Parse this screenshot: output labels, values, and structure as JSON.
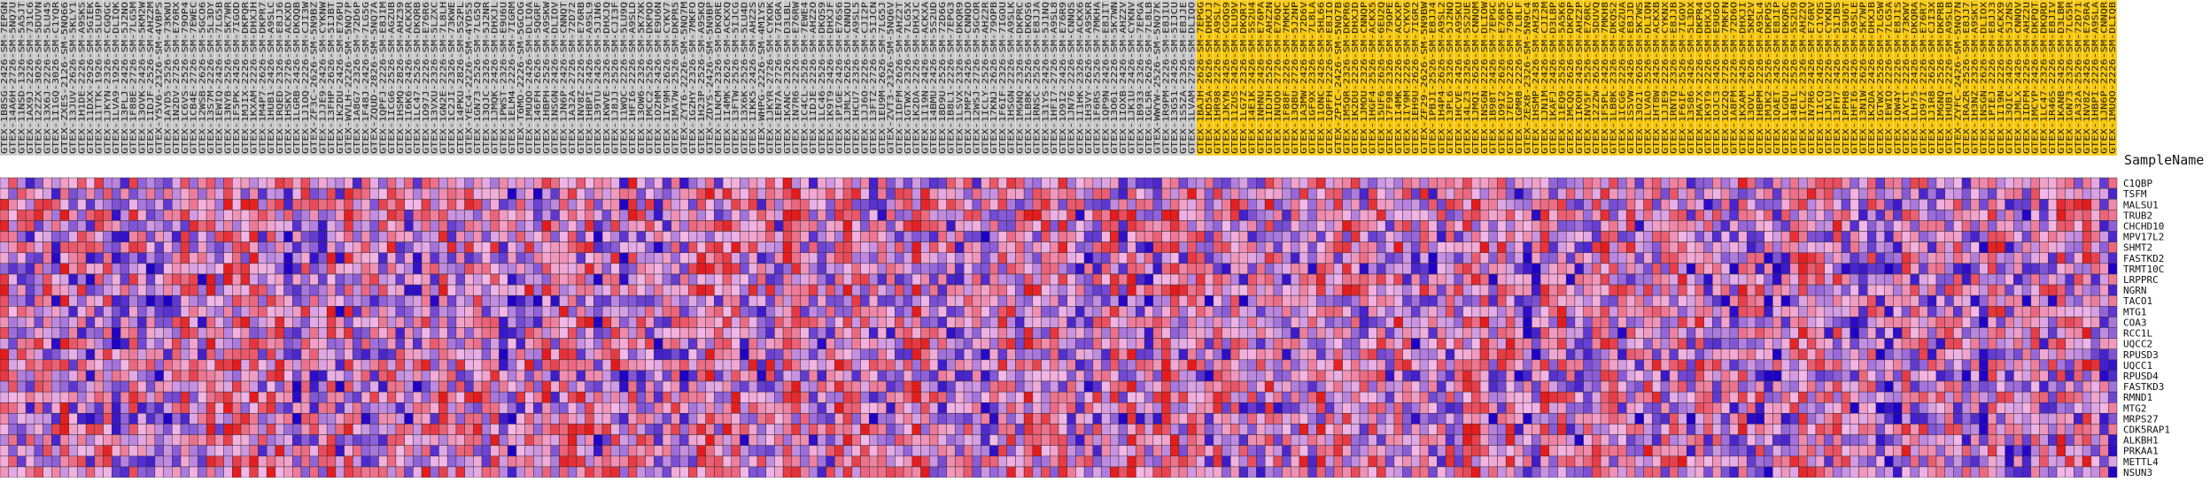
{
  "chart_data": {
    "type": "heatmap",
    "title": "",
    "row_axis_title": "SampleName",
    "colors": {
      "low": "#1f00c8",
      "mid": "#f4b8e8",
      "high": "#e51b1b",
      "group_control_bg": "#c8c8c8",
      "group_case_bg": "#f7c60a",
      "grid": "#333333"
    },
    "genes": [
      "C1QBP",
      "TSFM",
      "MALSU1",
      "TRUB2",
      "CHCHD10",
      "MPV17L2",
      "SHMT2",
      "FASTKD2",
      "TRMT10C",
      "LRPPRC",
      "NGRN",
      "TACO1",
      "MTG1",
      "COA3",
      "RCC1L",
      "UQCC2",
      "RPUSD3",
      "UQCC1",
      "RPUSD4",
      "FASTKD3",
      "RMND1",
      "MTG2",
      "MRPS27",
      "CDK5RAP1",
      "ALKBH1",
      "PRKAA1",
      "METTL4",
      "NSUN3"
    ],
    "samples_control": [
      "GTEX-1B8SG-2426-SM-7EPGN",
      "GTEX-14A6H-2726-SM-5NQ7U",
      "GTEX-11NSD-1326-SM-5A5JT",
      "GTEX-1AX9J-2226-SM-731C6",
      "GTEX-12ZZX-3026-SM-5DUVN",
      "GTEX-13X6J-2226-SM-5LU45",
      "GTEX-1I1GQ-3026-SM-C1YQR",
      "GTEX-ZXES-2126-SM-5NQ66",
      "GTEX-13JUV-2626-SM-5KLY1",
      "GTEX-1H1DE-2226-SM-A9SKS",
      "GTEX-11DXX-2926-SM-5GIEK",
      "GTEX-11TTK-1926-SM-5LU9P",
      "GTEX-1JKYN-2326-SM-CGQGC",
      "GTEX-1LVA9-1926-SM-DLIQK",
      "GTEX-13PLJ-2426-SM-5J2NO",
      "GTEX-1F88E-2726-SM-7LG5M",
      "GTEX-13OVK-2426-SM-5KM2W",
      "GTEX-1IDJF-2526-SM-AHZ2M",
      "GTEX-Y5V6-2326-SM-4VBPS",
      "GTEX-1AYD5-2526-SM-73KWU",
      "GTEX-1N2DV-2726-SM-E76RX",
      "GTEX-1C6VS-2526-SM-79OP4",
      "GTEX-1CB4E-2726-SM-7EWEC",
      "GTEX-12WSB-2626-SM-5GCO6",
      "GTEX-13S7M-2226-SM-5L3DY",
      "GTEX-1EWIQ-2426-SM-7LG5B",
      "GTEX-13NYB-2526-SM-5K7WR",
      "GTEX-1F5PK-2426-SM-7IGOD",
      "GTEX-1MJIX-2226-SM-DKPQR",
      "GTEX-1KXAM-2226-SM-DHXJH",
      "GTEX-1M4P7-2626-SM-DKPR7",
      "GTEX-1HUB1-2426-SM-A9SLC",
      "GTEX-1RQED-2326-SM-E8JJ6",
      "GTEX-1HSKV-2726-SM-ACKXD",
      "GTEX-1LGRB-2426-SM-DKQQB",
      "GTEX-1J1OQ-2226-SM-CJI3W",
      "GTEX-ZF3C-2626-SM-5N9BZ",
      "GTEX-1JJE9-2426-SM-CYKNW",
      "GTEX-13FHP-2626-SM-5IJBT",
      "GTEX-1K2DU-2426-SM-E76PU",
      "GTEX-WVLH-2226-SM-5NQ7P",
      "GTEX-1A8G7-2326-SM-72D6P",
      "GTEX-1F48J-2426-SM-7LG5G",
      "GTEX-ZQUD-2826-SM-5NQ7A",
      "GTEX-1QPFJ-2226-SM-E8JIM",
      "GTEX-1ICG6-2526-SM-AGZUB",
      "GTEX-1HSMQ-2826-SM-AHZ39",
      "GTEX-1I6K6-2426-SM-ACKXR",
      "GTEX-1LC47-2526-SM-DKQRB",
      "GTEX-1O97J-2226-SM-E76R6",
      "GTEX-13VXU-2326-SM-5LZXC",
      "GTEX-1GN2E-2226-SM-7L8LH",
      "GTEX-1C2JI-2326-SM-73KWE",
      "GTEX-14PKU-2826-SM-5S2PL",
      "GTEX-YEC4-2226-SM-4YDS5",
      "GTEX-1GN73-2526-SM-7LG5Q",
      "GTEX-13QJC-2326-SM-5J2NR",
      "GTEX-1JMQK-2426-SM-DHXJL",
      "GTEX-1PWST-2326-SM-E9U6U",
      "GTEX-1ELM4-2226-SM-7IGRM",
      "GTEX-T6MO-2226-SM-5GCOG",
      "GTEX-1MUQO-2426-SM-DLIQA",
      "GTEX-146FH-2626-SM-5QGRF",
      "GTEX-1HBPH-2526-SM-A9SKW",
      "GTEX-1NSGN-2426-SM-DLIOV",
      "GTEX-1JN6P-2426-SM-CNNQT",
      "GTEX-1A32A-2726-SM-72D72",
      "GTEX-1NV8Z-2226-SM-E76RB",
      "GTEX-1HBPI-2426-SM-A9SL9",
      "GTEX-139TU-2426-SM-5J1N6",
      "GTEX-1KWVE-2326-SM-DHXJQ",
      "GTEX-1J8JJ-2526-SM-CJI3F",
      "GTEX-11WQC-2226-SM-5LU9Q",
      "GTEX-1HFI6-2226-SM-A9SLD",
      "GTEX-13OW6-2326-SM-5K7XK",
      "GTEX-1MCC2-2526-SM-DKPQO",
      "GTEX-1OZHM-2426-SM-E9U6N",
      "GTEX-1IY9M-2626-SM-CYKV7",
      "GTEX-1MA7W-2526-SM-DKPR5",
      "GTEX-ZYT6-2226-SM-5NQ7M",
      "GTEX-1GZHY-2326-SM-7MKFO",
      "GTEX-1H23P-2526-SM-A9SKQ",
      "GTEX-ZDYS-2426-SM-5N9BP",
      "GTEX-1LNCM-2326-SM-DKQRE",
      "GTEX-1I4MK-2626-SM-ACKXQ",
      "GTEX-13FTW-2526-SM-5IJCG",
      "GTEX-13X6K-2526-SM-5LU4D",
      "GTEX-1IKK5-2426-SM-AHZ2S",
      "GTEX-WHPG-2226-SM-4M1YS",
      "GTEX-1JKYR-2726-SM-CYKOK",
      "GTEX-1EN7A-2726-SM-7IGRA",
      "GTEX-1KANC-2326-SM-D3LBL",
      "GTEX-1N7R6-2226-SM-E76RW",
      "GTEX-1C4CL-2526-SM-7EWE4",
      "GTEX-1IDJE-2226-SM-AHZ2O",
      "GTEX-1LC46-2526-SM-DKQS9",
      "GTEX-1K9T9-2426-SM-DHXJF",
      "GTEX-1PIGE-2426-SM-E76S6",
      "GTEX-1JMLX-2626-SM-CNNQU",
      "GTEX-1HCU7-2326-SM-A9SL5",
      "GTEX-1JJ6O-2226-SM-CJI2P",
      "GTEX-13FTZ-2726-SM-5IJCN",
      "GTEX-1EU9M-2626-SM-7LG5J",
      "GTEX-ZVT3-2326-SM-5NQ6V",
      "GTEX-1IDFM-2626-SM-AHZ2T",
      "GTEX-1GTWX-2326-SM-7LG5X",
      "GTEX-1K2DA-2226-SM-DHXJC",
      "GTEX-1I19N-2426-SM-ACKXA",
      "GTEX-14BMU-2426-SM-5S2UD",
      "GTEX-18D9U-2526-SM-72D6G",
      "GTEX-1B8L1-2226-SM-7EPG3",
      "GTEX-1LSVX-2326-SM-DKQR9",
      "GTEX-1JMPZ-2426-SM-CNNQO",
      "GTEX-12WSJ-2726-SM-5GCOR",
      "GTEX-1ICLY-2526-SM-AHZ2R",
      "GTEX-17KNJ-2626-SM-79OPB",
      "GTEX-1F6IF-2326-SM-7IGOU",
      "GTEX-1HSGN-2226-SM-A9SLK",
      "GTEX-1MGNQ-2326-SM-DKPRC",
      "GTEX-1LB8K-2526-SM-DKQS6",
      "GTEX-1RNSC-2526-SM-E8JJA",
      "GTEX-131YS-2426-SM-5J1NQ",
      "GTEX-1HFI7-2726-SM-A9SL8",
      "GTEX-1O9I2-2426-SM-E76R9",
      "GTEX-1JN76-2226-SM-CNNQS",
      "GTEX-1I1HK-2326-SM-ACKX6",
      "GTEX-1H3VY-2626-SM-A9SKR",
      "GTEX-1F6RS-2526-SM-7MKHA",
      "GTEX-1QP9N-2426-SM-E8JIT",
      "GTEX-13O61-2226-SM-5K7WN",
      "GTEX-1IOXB-2426-SM-AHZ2V",
      "GTEX-1JK1U-2426-SM-CYKNV",
      "GTEX-1B933-2326-SM-7EPGA",
      "GTEX-1GL5R-2626-SM-7L8LB",
      "GTEX-WWYW-2526-SM-5NQ7K",
      "GTEX-1R9PM-2226-SM-E8JIU",
      "GTEX-13G51-2426-SM-5IJCU",
      "GTEX-1S5ZA-2326-SM-E8JJE",
      "GTEX-1LVAM-2726-SM-DLIQO"
    ],
    "samples_case": [
      "GTEX-1BAJH-2626-SM-7EPGG",
      "GTEX-1KD5A-2626-SM-DHXJJ",
      "GTEX-1HR98-2226-SM-A9SL7",
      "GTEX-1JKYN-2426-SM-CGQG9",
      "GTEX-11ZUS-2426-SM-5LU9V",
      "GTEX-1LG7Z-2326-SM-DKQR7",
      "GTEX-14E1K-2426-SM-5S2U4",
      "GTEX-1NHNU-2426-SM-E76PA",
      "GTEX-1IDJH-2526-SM-AHZ2N",
      "GTEX-1NUQO-2726-SM-E76QC",
      "GTEX-1F88F-2226-SM-7MKHC",
      "GTEX-13QBU-2726-SM-5J2NP",
      "GTEX-1A3MW-2426-SM-72D6V",
      "GTEX-1GF9X-2326-SM-7L8LA",
      "GTEX-11ONC-2426-SM-5HL66",
      "GTEX-1QPFH-2226-SM-E8JIO",
      "GTEX-ZPIC-2426-SM-5NQ7B",
      "GTEX-1M5QR-2326-SM-DKPR6",
      "GTEX-1K2DU-2226-SM-DHXJD",
      "GTEX-1JMOU-2326-SM-CNNQP",
      "GTEX-1HGF4-2526-SM-ACKX5",
      "GTEX-15UF6-2626-SM-6EU2Q",
      "GTEX-17F98-2326-SM-79OPE",
      "GTEX-1I4MK-2226-SM-ACKXP",
      "GTEX-1IY9M-2226-SM-CYKV6",
      "GTEX-1EH9U-2626-SM-7IGR2",
      "GTEX-ZF29-2626-SM-5N9BW",
      "GTEX-1PBJI-2526-SM-E8JJ4",
      "GTEX-1H4P4-2626-SM-A9SL2",
      "GTEX-13PL6-2326-SM-5J2NQ",
      "GTEX-1HCVE-2426-SM-A9SKU",
      "GTEX-14LZ3-2326-SM-5S2UE",
      "GTEX-1JMQI-2626-SM-CNNQM",
      "GTEX-1NSGN-2226-SM-DLIOW",
      "GTEX-1B98T-2426-SM-7EPGC",
      "GTEX-1O9I2-2626-SM-E76R5",
      "GTEX-17EUY-2226-SM-79OPC",
      "GTEX-1GMR8-2226-SM-7L8LF",
      "GTEX-ZEX8-2326-SM-5N9C4",
      "GTEX-1HSMP-2426-SM-AHZ38",
      "GTEX-1JN1M-2426-SM-CJI2M",
      "GTEX-1KAFJ-2426-SM-D3LBP",
      "GTEX-11EQ9-2526-SM-5A5K6",
      "GTEX-1MCQQ-2626-SM-DKPQP",
      "GTEX-1IKOH-2426-SM-AHZ2P",
      "GTEX-1NV5F-2526-SM-E76RC",
      "GTEX-12ZZW-2626-SM-5DUVQ",
      "GTEX-1F5PL-2426-SM-7MKH8",
      "GTEX-1LB8K-2326-SM-DKQS2",
      "GTEX-1ICG6-2226-SM-AGZUA",
      "GTEX-1S5VW-2426-SM-E8JJD",
      "GTEX-13O21-2626-SM-5K7WS",
      "GTEX-1LVAO-2526-SM-DLIQN",
      "GTEX-1HT8W-2426-SM-ACKXB",
      "GTEX-1JJE9-2226-SM-CYKNX",
      "GTEX-1RNTQ-2326-SM-E8JJB",
      "GTEX-1F6IF-2526-SM-7IGOV",
      "GTEX-13S86-2426-SM-5L3DX",
      "GTEX-1MA7X-2226-SM-DKPR4",
      "GTEX-1K9T9-2226-SM-DHXJG",
      "GTEX-1OJC3-2426-SM-E9U6O",
      "GTEX-1GZ2Q-2726-SM-7MKFN",
      "GTEX-1A8FM-2226-SM-72D6O",
      "GTEX-1KXAM-2426-SM-DHXJI",
      "GTEX-13OVL-2626-SM-5KM2V",
      "GTEX-1HBPM-2226-SM-A9SL4",
      "GTEX-1MJK2-2526-SM-DKPQS",
      "GTEX-1QAET-2426-SM-E8JIP",
      "GTEX-1LGOU-2226-SM-DKQRC",
      "GTEX-14BIL-2526-SM-5S2U9",
      "GTEX-1ICLZ-2326-SM-AHZ2Q",
      "GTEX-1N7R6-2426-SM-E76RV",
      "GTEX-1I1CQ-2426-SM-C1YQS",
      "GTEX-1JK1U-2226-SM-CYKNU",
      "GTEX-13FH7-2426-SM-5IJBS",
      "GTEX-1PPH8-2326-SM-E9U6T",
      "GTEX-1HFI6-2426-SM-A9SLE",
      "GTEX-13N1W-2626-SM-5K7WP",
      "GTEX-1K2DA-2426-SM-DHXJB",
      "GTEX-1GTWX-2526-SM-7LG5W",
      "GTEX-1EWIQ-2226-SM-7LG5A",
      "GTEX-1QW4Y-2226-SM-E8JIS",
      "GTEX-1AYCT-2226-SM-73KWV",
      "GTEX-1LH75-2426-SM-DKQRA",
      "GTEX-1O97I-2226-SM-E76R7",
      "GTEX-1J1R8-2626-SM-CJI3X",
      "GTEX-1MGNQ-2526-SM-DKPRB",
      "GTEX-1HUB1-2226-SM-A9SLB",
      "GTEX-ZYFC-2426-SM-5NQ7N",
      "GTEX-1RAZR-2526-SM-E8JJ7",
      "GTEX-1H3NZ-2326-SM-A9SKT",
      "GTEX-1NSGN-2626-SM-DLIOX",
      "GTEX-1PIEJ-2226-SM-E8JJ3",
      "GTEX-1I19N-2226-SM-ACKX9",
      "GTEX-13QIC-2426-SM-5J2NS",
      "GTEX-1JMLX-2426-SM-CNNQV",
      "GTEX-1IDFM-2226-SM-AHZ2U",
      "GTEX-1MCYP-2426-SM-DKPQT",
      "GTEX-1LC47-2326-SM-DKQRD",
      "GTEX-1R46S-2226-SM-E8JIV",
      "GTEX-1KANB-2426-SM-D3LBM",
      "GTEX-1GN73-2326-SM-7LG5R",
      "GTEX-1A32A-2526-SM-72D71",
      "GTEX-1NV8Z-2426-SM-E76RA",
      "GTEX-1HBPI-2226-SM-A9SLA",
      "GTEX-1JN6P-2226-SM-CNNQR",
      "GTEX-1MUQO-2226-SM-DLIQB"
    ]
  }
}
